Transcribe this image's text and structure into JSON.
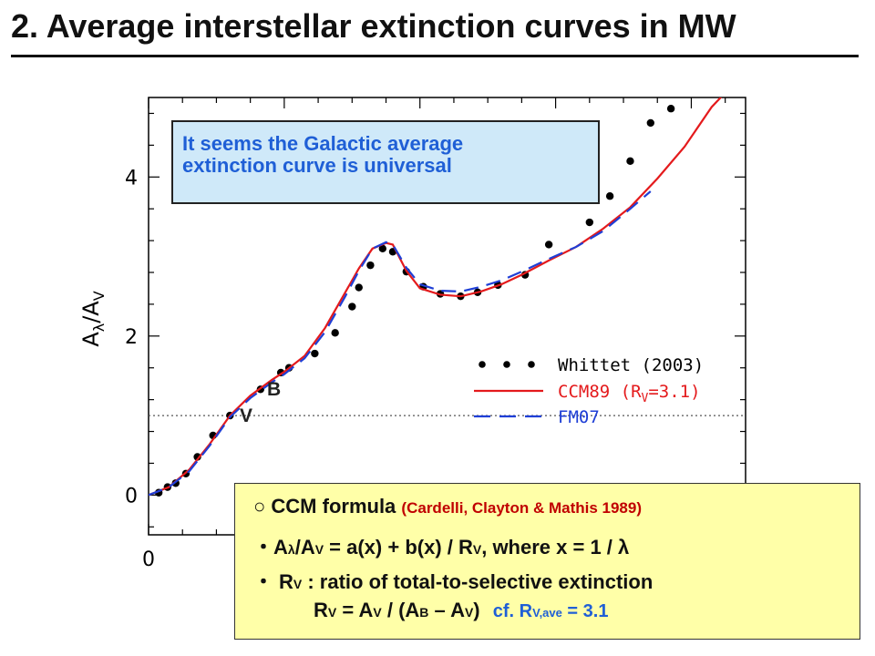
{
  "title": "2. Average interstellar extinction curves in MW",
  "callout": {
    "line1": "It seems the Galactic average",
    "line2": "extinction curve is universal"
  },
  "band_labels": {
    "b": "B",
    "v": "V"
  },
  "formula_box": {
    "line1_main": "○ CCM formula",
    "line1_ref": "(Cardelli, Clayton & Mathis 1989)",
    "line2_bullet": "・",
    "line2_A": "A",
    "line2_lambda": "λ",
    "line2_slashA": "/A",
    "line2_V": "V",
    "line2_mid": " = a(x) + b(x) / R",
    "line2_V2": "V",
    "line2_end": ", where x = 1 / λ",
    "line3_bullet": "・",
    "line3_R": "R",
    "line3_V": "V",
    "line3_text": " : ratio of total-to-selective extinction",
    "line4_R": "R",
    "line4_V": "V",
    "line4_eq": " = A",
    "line4_V2": "V",
    "line4_open": " / (A",
    "line4_B": "B",
    "line4_minus": " – A",
    "line4_V3": "V",
    "line4_close": ")",
    "line4_cf": "cf. R",
    "line4_sub": "V,ave",
    "line4_val": " = 3.1"
  },
  "chart_data": {
    "type": "line",
    "ylabel_main": "A",
    "ylabel_sub1": "λ",
    "ylabel_sub2": "V",
    "xlim": [
      0,
      8.8
    ],
    "ylim": [
      -0.5,
      5
    ],
    "x_ticks": [
      0
    ],
    "y_ticks": [
      0,
      2,
      4
    ],
    "reference_line": {
      "y": 1,
      "style": "dotted"
    },
    "legend_position": "right-middle",
    "series": [
      {
        "name": "Whittet (2003)",
        "style": "points",
        "color": "#000000",
        "x": [
          0.15,
          0.28,
          0.4,
          0.55,
          0.72,
          0.95,
          1.2,
          1.65,
          1.95,
          2.07,
          2.45,
          2.75,
          3.0,
          3.1,
          3.27,
          3.45,
          3.6,
          3.8,
          4.05,
          4.3,
          4.6,
          4.85,
          5.15,
          5.55,
          5.9,
          6.5,
          6.8,
          7.1,
          7.4,
          7.7
        ],
        "y": [
          0.03,
          0.1,
          0.15,
          0.27,
          0.48,
          0.75,
          1.0,
          1.33,
          1.54,
          1.6,
          1.78,
          2.04,
          2.37,
          2.61,
          2.89,
          3.1,
          3.06,
          2.81,
          2.62,
          2.53,
          2.5,
          2.55,
          2.64,
          2.77,
          3.15,
          3.43,
          3.76,
          4.2,
          4.68,
          4.86
        ]
      },
      {
        "name": "CCM89 (R",
        "name_sub": "V",
        "name_tail": "=3.1)",
        "style": "solid",
        "color": "#e41a1c",
        "x": [
          0.0,
          0.3,
          0.6,
          0.9,
          1.2,
          1.5,
          1.82,
          2.0,
          2.3,
          2.6,
          2.9,
          3.1,
          3.3,
          3.5,
          3.6,
          3.8,
          4.0,
          4.3,
          4.6,
          4.9,
          5.2,
          5.5,
          5.9,
          6.3,
          6.7,
          7.1,
          7.5,
          7.9,
          8.3,
          8.6
        ],
        "y": [
          0.0,
          0.1,
          0.32,
          0.64,
          1.0,
          1.25,
          1.45,
          1.55,
          1.75,
          2.1,
          2.55,
          2.85,
          3.1,
          3.17,
          3.15,
          2.82,
          2.6,
          2.52,
          2.5,
          2.56,
          2.65,
          2.77,
          2.95,
          3.12,
          3.35,
          3.62,
          3.98,
          4.38,
          4.88,
          5.15
        ]
      },
      {
        "name": "FM07",
        "style": "dashed",
        "color": "#1f3fd6",
        "x": [
          0.0,
          0.3,
          0.6,
          0.9,
          1.2,
          1.5,
          1.82,
          2.0,
          2.3,
          2.6,
          2.9,
          3.1,
          3.3,
          3.5,
          3.6,
          3.8,
          4.0,
          4.3,
          4.6,
          4.9,
          5.2,
          5.5,
          5.9,
          6.3,
          6.7,
          7.1,
          7.4
        ],
        "y": [
          0.0,
          0.1,
          0.3,
          0.62,
          0.98,
          1.22,
          1.42,
          1.52,
          1.72,
          2.05,
          2.5,
          2.82,
          3.1,
          3.18,
          3.15,
          2.86,
          2.65,
          2.57,
          2.56,
          2.62,
          2.7,
          2.81,
          2.97,
          3.12,
          3.32,
          3.6,
          3.82
        ]
      }
    ]
  }
}
